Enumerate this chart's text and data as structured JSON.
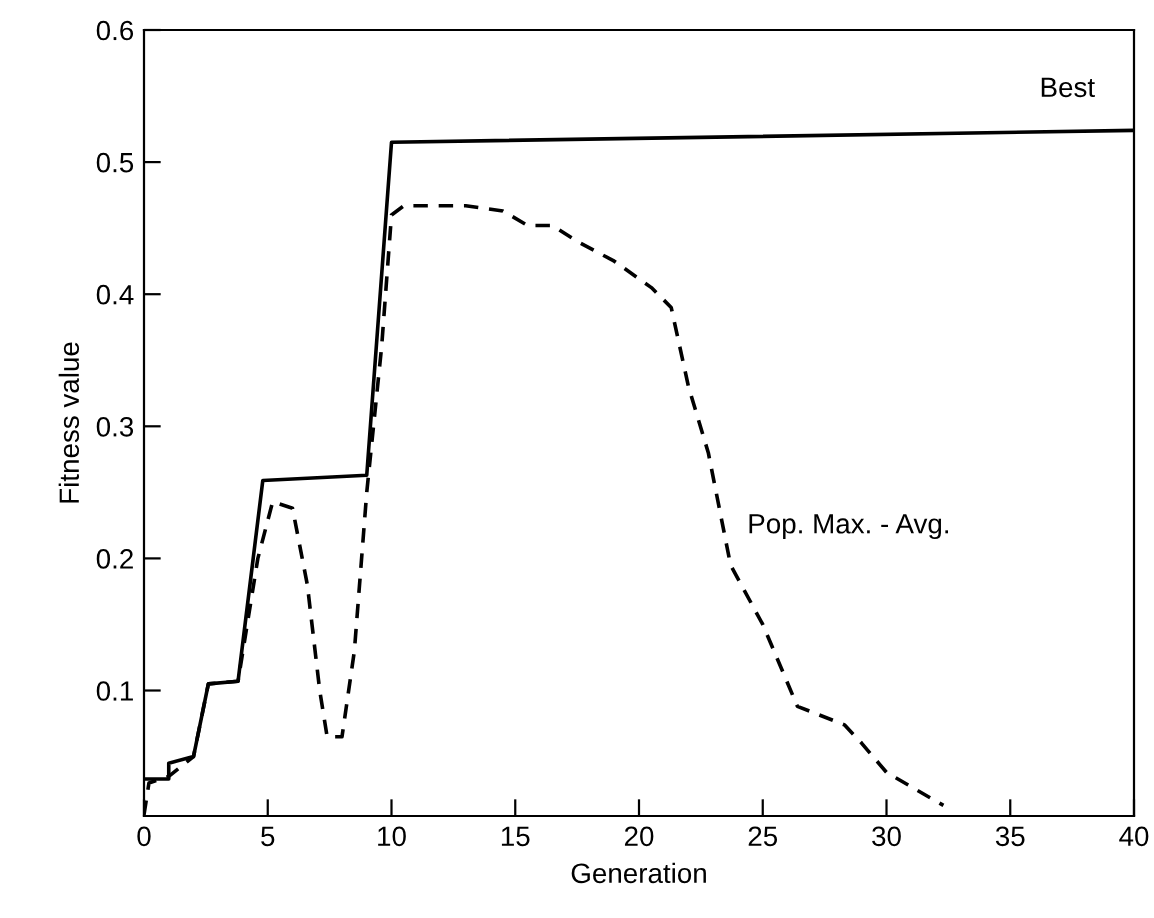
{
  "chart_data": {
    "type": "line",
    "xlabel": "Generation",
    "ylabel": "Fitness value",
    "xlim": [
      0,
      40
    ],
    "xticks": [
      0,
      5,
      10,
      15,
      20,
      25,
      30,
      35,
      40
    ],
    "ylim": [
      0.005,
      0.6
    ],
    "yticks": [
      0.1,
      0.2,
      0.3,
      0.4,
      0.5,
      0.6
    ],
    "grid": false,
    "legend": false,
    "marker": "none",
    "series": [
      {
        "name": "Best",
        "color": "#000000",
        "line_style": "solid",
        "x": [
          0,
          1,
          1,
          2,
          2.6,
          3.8,
          4.8,
          9,
          10,
          40
        ],
        "values": [
          0.033,
          0.033,
          0.045,
          0.05,
          0.105,
          0.107,
          0.259,
          0.263,
          0.515,
          0.524
        ]
      },
      {
        "name": "Pop. Max. - Avg.",
        "color": "#000000",
        "line_style": "dashed",
        "x": [
          0,
          0.2,
          1,
          2,
          2.6,
          3.8,
          4.6,
          5.2,
          6,
          6.6,
          7.1,
          7.4,
          8,
          8.5,
          9,
          9.6,
          10,
          10.5,
          13,
          14.5,
          15.5,
          16.5,
          17.5,
          19,
          20.5,
          21.3,
          22,
          22.8,
          23.7,
          25,
          26.4,
          28.3,
          29,
          30,
          32.3
        ],
        "values": [
          0.006,
          0.03,
          0.035,
          0.05,
          0.105,
          0.107,
          0.2,
          0.243,
          0.238,
          0.18,
          0.1,
          0.065,
          0.065,
          0.13,
          0.25,
          0.36,
          0.46,
          0.467,
          0.467,
          0.463,
          0.452,
          0.452,
          0.44,
          0.425,
          0.405,
          0.39,
          0.33,
          0.28,
          0.195,
          0.15,
          0.088,
          0.074,
          0.06,
          0.038,
          0.013
        ]
      }
    ]
  }
}
